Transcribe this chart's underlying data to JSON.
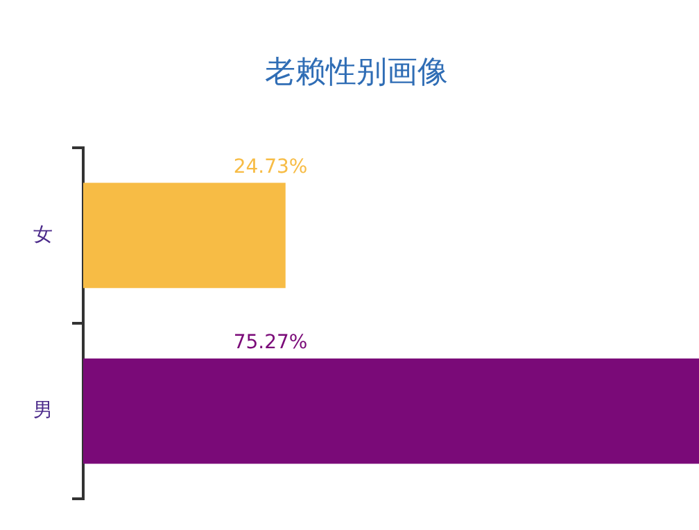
{
  "chart_data": {
    "type": "bar",
    "orientation": "horizontal",
    "title": "老赖性别画像",
    "categories": [
      "女",
      "男"
    ],
    "values": [
      24.73,
      75.27
    ],
    "colors": [
      "#f7bc45",
      "#7a0a78"
    ],
    "value_labels": [
      "24.73%",
      "75.27%"
    ],
    "grid": false,
    "legend": false
  }
}
